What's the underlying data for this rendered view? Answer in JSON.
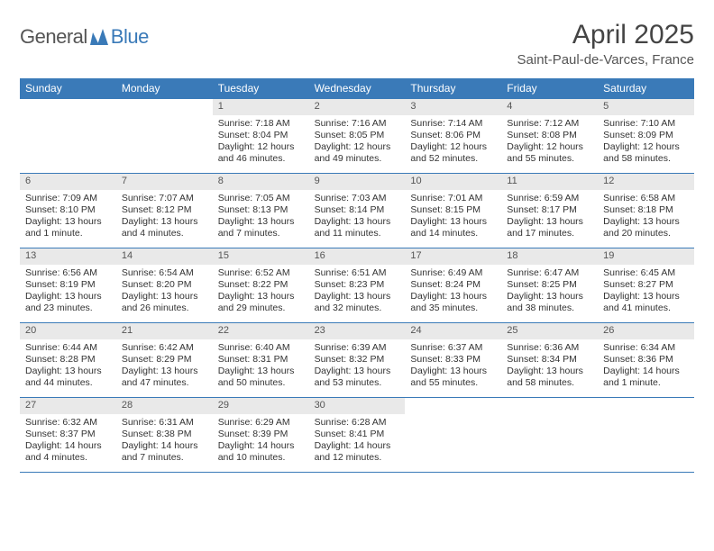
{
  "logo": {
    "general": "General",
    "blue": "Blue",
    "mark_color": "#3a7ab8"
  },
  "title": "April 2025",
  "location": "Saint-Paul-de-Varces, France",
  "colors": {
    "header_bg": "#3a7ab8",
    "header_text": "#ffffff",
    "daynum_bg": "#e9e9e9",
    "row_border": "#3a7ab8",
    "body_text": "#333333"
  },
  "weekdays": [
    "Sunday",
    "Monday",
    "Tuesday",
    "Wednesday",
    "Thursday",
    "Friday",
    "Saturday"
  ],
  "weeks": [
    [
      null,
      null,
      {
        "n": "1",
        "sr": "Sunrise: 7:18 AM",
        "ss": "Sunset: 8:04 PM",
        "dl": "Daylight: 12 hours and 46 minutes."
      },
      {
        "n": "2",
        "sr": "Sunrise: 7:16 AM",
        "ss": "Sunset: 8:05 PM",
        "dl": "Daylight: 12 hours and 49 minutes."
      },
      {
        "n": "3",
        "sr": "Sunrise: 7:14 AM",
        "ss": "Sunset: 8:06 PM",
        "dl": "Daylight: 12 hours and 52 minutes."
      },
      {
        "n": "4",
        "sr": "Sunrise: 7:12 AM",
        "ss": "Sunset: 8:08 PM",
        "dl": "Daylight: 12 hours and 55 minutes."
      },
      {
        "n": "5",
        "sr": "Sunrise: 7:10 AM",
        "ss": "Sunset: 8:09 PM",
        "dl": "Daylight: 12 hours and 58 minutes."
      }
    ],
    [
      {
        "n": "6",
        "sr": "Sunrise: 7:09 AM",
        "ss": "Sunset: 8:10 PM",
        "dl": "Daylight: 13 hours and 1 minute."
      },
      {
        "n": "7",
        "sr": "Sunrise: 7:07 AM",
        "ss": "Sunset: 8:12 PM",
        "dl": "Daylight: 13 hours and 4 minutes."
      },
      {
        "n": "8",
        "sr": "Sunrise: 7:05 AM",
        "ss": "Sunset: 8:13 PM",
        "dl": "Daylight: 13 hours and 7 minutes."
      },
      {
        "n": "9",
        "sr": "Sunrise: 7:03 AM",
        "ss": "Sunset: 8:14 PM",
        "dl": "Daylight: 13 hours and 11 minutes."
      },
      {
        "n": "10",
        "sr": "Sunrise: 7:01 AM",
        "ss": "Sunset: 8:15 PM",
        "dl": "Daylight: 13 hours and 14 minutes."
      },
      {
        "n": "11",
        "sr": "Sunrise: 6:59 AM",
        "ss": "Sunset: 8:17 PM",
        "dl": "Daylight: 13 hours and 17 minutes."
      },
      {
        "n": "12",
        "sr": "Sunrise: 6:58 AM",
        "ss": "Sunset: 8:18 PM",
        "dl": "Daylight: 13 hours and 20 minutes."
      }
    ],
    [
      {
        "n": "13",
        "sr": "Sunrise: 6:56 AM",
        "ss": "Sunset: 8:19 PM",
        "dl": "Daylight: 13 hours and 23 minutes."
      },
      {
        "n": "14",
        "sr": "Sunrise: 6:54 AM",
        "ss": "Sunset: 8:20 PM",
        "dl": "Daylight: 13 hours and 26 minutes."
      },
      {
        "n": "15",
        "sr": "Sunrise: 6:52 AM",
        "ss": "Sunset: 8:22 PM",
        "dl": "Daylight: 13 hours and 29 minutes."
      },
      {
        "n": "16",
        "sr": "Sunrise: 6:51 AM",
        "ss": "Sunset: 8:23 PM",
        "dl": "Daylight: 13 hours and 32 minutes."
      },
      {
        "n": "17",
        "sr": "Sunrise: 6:49 AM",
        "ss": "Sunset: 8:24 PM",
        "dl": "Daylight: 13 hours and 35 minutes."
      },
      {
        "n": "18",
        "sr": "Sunrise: 6:47 AM",
        "ss": "Sunset: 8:25 PM",
        "dl": "Daylight: 13 hours and 38 minutes."
      },
      {
        "n": "19",
        "sr": "Sunrise: 6:45 AM",
        "ss": "Sunset: 8:27 PM",
        "dl": "Daylight: 13 hours and 41 minutes."
      }
    ],
    [
      {
        "n": "20",
        "sr": "Sunrise: 6:44 AM",
        "ss": "Sunset: 8:28 PM",
        "dl": "Daylight: 13 hours and 44 minutes."
      },
      {
        "n": "21",
        "sr": "Sunrise: 6:42 AM",
        "ss": "Sunset: 8:29 PM",
        "dl": "Daylight: 13 hours and 47 minutes."
      },
      {
        "n": "22",
        "sr": "Sunrise: 6:40 AM",
        "ss": "Sunset: 8:31 PM",
        "dl": "Daylight: 13 hours and 50 minutes."
      },
      {
        "n": "23",
        "sr": "Sunrise: 6:39 AM",
        "ss": "Sunset: 8:32 PM",
        "dl": "Daylight: 13 hours and 53 minutes."
      },
      {
        "n": "24",
        "sr": "Sunrise: 6:37 AM",
        "ss": "Sunset: 8:33 PM",
        "dl": "Daylight: 13 hours and 55 minutes."
      },
      {
        "n": "25",
        "sr": "Sunrise: 6:36 AM",
        "ss": "Sunset: 8:34 PM",
        "dl": "Daylight: 13 hours and 58 minutes."
      },
      {
        "n": "26",
        "sr": "Sunrise: 6:34 AM",
        "ss": "Sunset: 8:36 PM",
        "dl": "Daylight: 14 hours and 1 minute."
      }
    ],
    [
      {
        "n": "27",
        "sr": "Sunrise: 6:32 AM",
        "ss": "Sunset: 8:37 PM",
        "dl": "Daylight: 14 hours and 4 minutes."
      },
      {
        "n": "28",
        "sr": "Sunrise: 6:31 AM",
        "ss": "Sunset: 8:38 PM",
        "dl": "Daylight: 14 hours and 7 minutes."
      },
      {
        "n": "29",
        "sr": "Sunrise: 6:29 AM",
        "ss": "Sunset: 8:39 PM",
        "dl": "Daylight: 14 hours and 10 minutes."
      },
      {
        "n": "30",
        "sr": "Sunrise: 6:28 AM",
        "ss": "Sunset: 8:41 PM",
        "dl": "Daylight: 14 hours and 12 minutes."
      },
      null,
      null,
      null
    ]
  ]
}
